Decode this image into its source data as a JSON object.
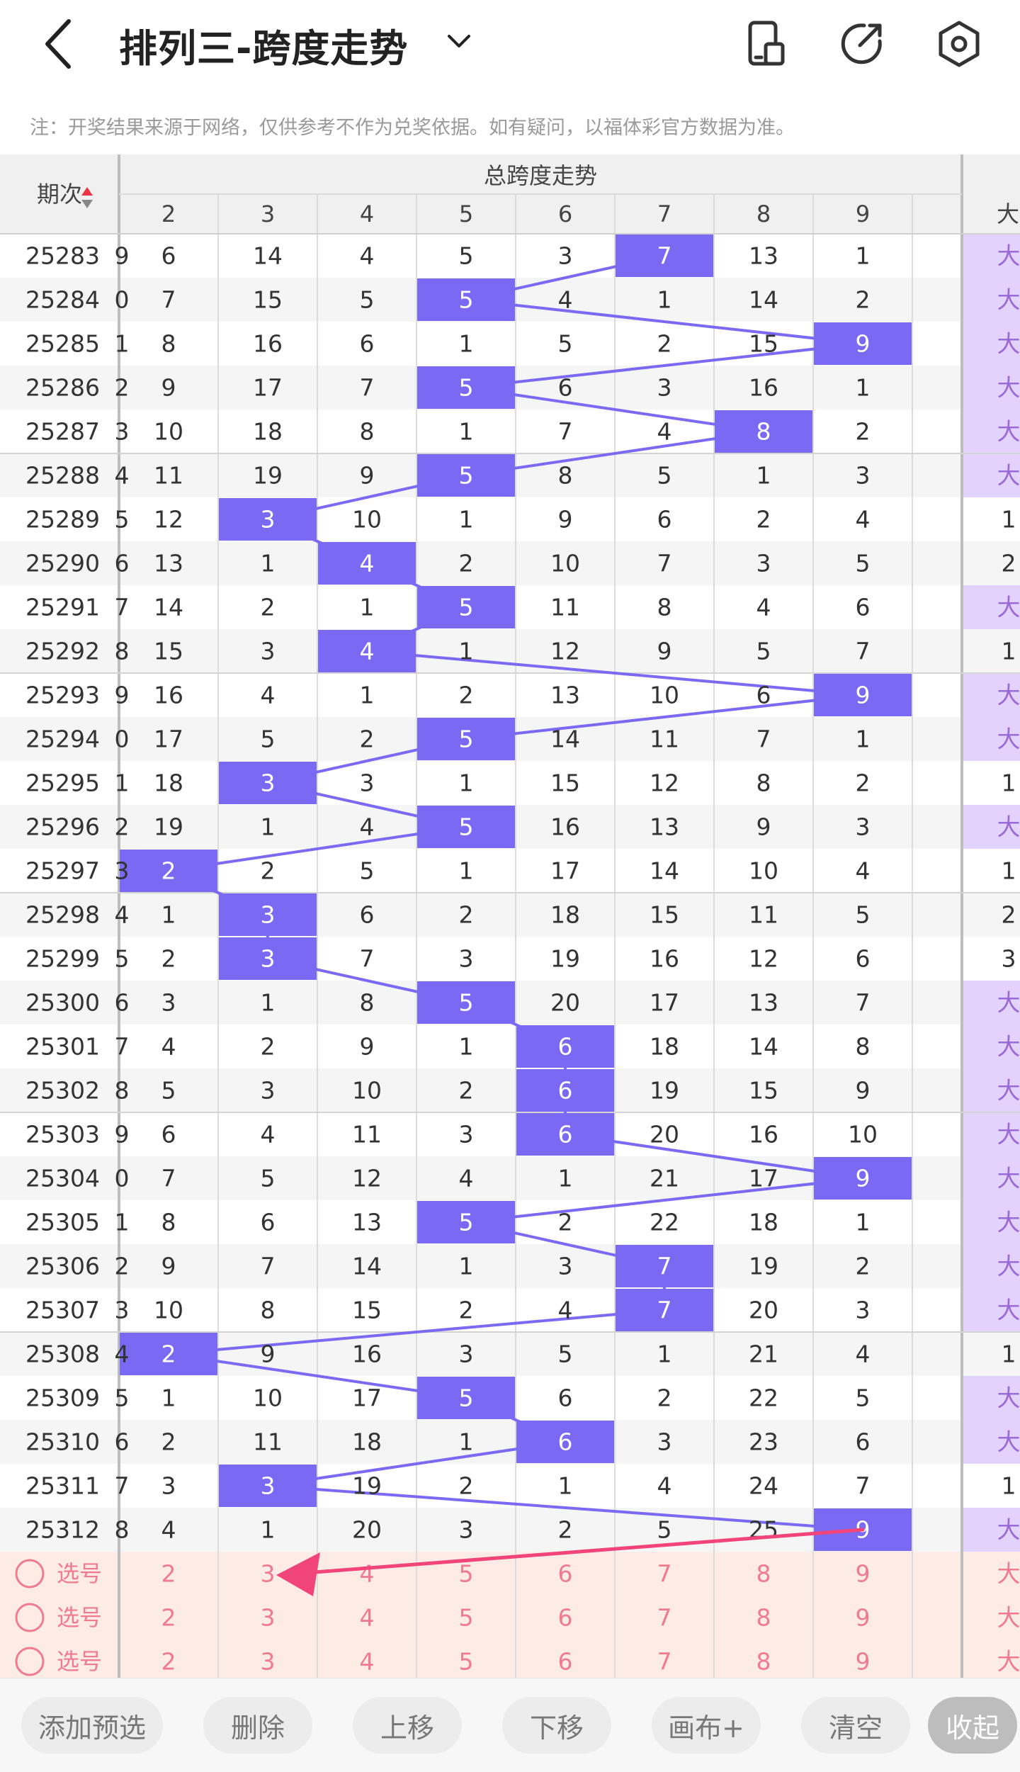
{
  "header": {
    "title": "排列三-跨度走势",
    "icons": [
      "back-arrow-icon",
      "chevron-down-icon",
      "phone-layout-icon",
      "share-icon",
      "settings-icon"
    ]
  },
  "notice": "注：开奖结果来源于网络，仅供参考不作为兑奖依据。如有疑问，以福体彩官方数据为准。",
  "table": {
    "period_header": "期次",
    "group_header": "总跨度走势",
    "columns": [
      "2",
      "3",
      "4",
      "5",
      "6",
      "7",
      "8",
      "9"
    ],
    "right_header": "大",
    "left_partial_header": "",
    "rows": [
      {
        "period": "25283",
        "left": "9",
        "vals": [
          "6",
          "14",
          "4",
          "5",
          "3",
          "7",
          "13",
          "1"
        ],
        "hit": "7",
        "right": "大"
      },
      {
        "period": "25284",
        "left": "0",
        "vals": [
          "7",
          "15",
          "5",
          "5",
          "4",
          "1",
          "14",
          "2"
        ],
        "hit": "5",
        "right": "大"
      },
      {
        "period": "25285",
        "left": "1",
        "vals": [
          "8",
          "16",
          "6",
          "1",
          "5",
          "2",
          "15",
          "9"
        ],
        "hit": "9",
        "right": "大"
      },
      {
        "period": "25286",
        "left": "2",
        "vals": [
          "9",
          "17",
          "7",
          "5",
          "6",
          "3",
          "16",
          "1"
        ],
        "hit": "5",
        "right": "大"
      },
      {
        "period": "25287",
        "left": "3",
        "vals": [
          "10",
          "18",
          "8",
          "1",
          "7",
          "4",
          "8",
          "2"
        ],
        "hit": "8",
        "right": "大"
      },
      {
        "period": "25288",
        "left": "4",
        "vals": [
          "11",
          "19",
          "9",
          "5",
          "8",
          "5",
          "1",
          "3"
        ],
        "hit": "5",
        "right": "大"
      },
      {
        "period": "25289",
        "left": "5",
        "vals": [
          "12",
          "3",
          "10",
          "1",
          "9",
          "6",
          "2",
          "4"
        ],
        "hit": "3",
        "right": "1"
      },
      {
        "period": "25290",
        "left": "6",
        "vals": [
          "13",
          "1",
          "4",
          "2",
          "10",
          "7",
          "3",
          "5"
        ],
        "hit": "4",
        "right": "2"
      },
      {
        "period": "25291",
        "left": "7",
        "vals": [
          "14",
          "2",
          "1",
          "5",
          "11",
          "8",
          "4",
          "6"
        ],
        "hit": "5",
        "right": "大"
      },
      {
        "period": "25292",
        "left": "8",
        "vals": [
          "15",
          "3",
          "4",
          "1",
          "12",
          "9",
          "5",
          "7"
        ],
        "hit": "4",
        "right": "1"
      },
      {
        "period": "25293",
        "left": "9",
        "vals": [
          "16",
          "4",
          "1",
          "2",
          "13",
          "10",
          "6",
          "9"
        ],
        "hit": "9",
        "right": "大"
      },
      {
        "period": "25294",
        "left": "0",
        "vals": [
          "17",
          "5",
          "2",
          "5",
          "14",
          "11",
          "7",
          "1"
        ],
        "hit": "5",
        "right": "大"
      },
      {
        "period": "25295",
        "left": "1",
        "vals": [
          "18",
          "3",
          "3",
          "1",
          "15",
          "12",
          "8",
          "2"
        ],
        "hit": "3",
        "right": "1"
      },
      {
        "period": "25296",
        "left": "2",
        "vals": [
          "19",
          "1",
          "4",
          "5",
          "16",
          "13",
          "9",
          "3"
        ],
        "hit": "5",
        "right": "大"
      },
      {
        "period": "25297",
        "left": "3",
        "vals": [
          "2",
          "2",
          "5",
          "1",
          "17",
          "14",
          "10",
          "4"
        ],
        "hit": "2",
        "right": "1"
      },
      {
        "period": "25298",
        "left": "4",
        "vals": [
          "1",
          "3",
          "6",
          "2",
          "18",
          "15",
          "11",
          "5"
        ],
        "hit": "3",
        "right": "2"
      },
      {
        "period": "25299",
        "left": "5",
        "vals": [
          "2",
          "3",
          "7",
          "3",
          "19",
          "16",
          "12",
          "6"
        ],
        "hit": "3",
        "right": "3"
      },
      {
        "period": "25300",
        "left": "6",
        "vals": [
          "3",
          "1",
          "8",
          "5",
          "20",
          "17",
          "13",
          "7"
        ],
        "hit": "5",
        "right": "大"
      },
      {
        "period": "25301",
        "left": "7",
        "vals": [
          "4",
          "2",
          "9",
          "1",
          "6",
          "18",
          "14",
          "8"
        ],
        "hit": "6",
        "right": "大"
      },
      {
        "period": "25302",
        "left": "8",
        "vals": [
          "5",
          "3",
          "10",
          "2",
          "6",
          "19",
          "15",
          "9"
        ],
        "hit": "6",
        "right": "大"
      },
      {
        "period": "25303",
        "left": "9",
        "vals": [
          "6",
          "4",
          "11",
          "3",
          "6",
          "20",
          "16",
          "10"
        ],
        "hit": "6",
        "right": "大"
      },
      {
        "period": "25304",
        "left": "0",
        "vals": [
          "7",
          "5",
          "12",
          "4",
          "1",
          "21",
          "17",
          "9"
        ],
        "hit": "9",
        "right": "大"
      },
      {
        "period": "25305",
        "left": "1",
        "vals": [
          "8",
          "6",
          "13",
          "5",
          "2",
          "22",
          "18",
          "1"
        ],
        "hit": "5",
        "right": "大"
      },
      {
        "period": "25306",
        "left": "2",
        "vals": [
          "9",
          "7",
          "14",
          "1",
          "3",
          "7",
          "19",
          "2"
        ],
        "hit": "7",
        "right": "大"
      },
      {
        "period": "25307",
        "left": "3",
        "vals": [
          "10",
          "8",
          "15",
          "2",
          "4",
          "7",
          "20",
          "3"
        ],
        "hit": "7",
        "right": "大"
      },
      {
        "period": "25308",
        "left": "4",
        "vals": [
          "2",
          "9",
          "16",
          "3",
          "5",
          "1",
          "21",
          "4"
        ],
        "hit": "2",
        "right": "1"
      },
      {
        "period": "25309",
        "left": "5",
        "vals": [
          "1",
          "10",
          "17",
          "5",
          "6",
          "2",
          "22",
          "5"
        ],
        "hit": "5",
        "right": "大"
      },
      {
        "period": "25310",
        "left": "6",
        "vals": [
          "2",
          "11",
          "18",
          "1",
          "6",
          "3",
          "23",
          "6"
        ],
        "hit": "6",
        "right": "大"
      },
      {
        "period": "25311",
        "left": "7",
        "vals": [
          "3",
          "3",
          "19",
          "2",
          "1",
          "4",
          "24",
          "7"
        ],
        "hit": "3",
        "right": "1"
      },
      {
        "period": "25312",
        "left": "8",
        "vals": [
          "4",
          "1",
          "20",
          "3",
          "2",
          "5",
          "25",
          "9"
        ],
        "hit": "9",
        "right": "大"
      }
    ],
    "selection_rows": [
      {
        "label": "选号",
        "vals": [
          "2",
          "3",
          "4",
          "5",
          "6",
          "7",
          "8",
          "9"
        ],
        "right": "大"
      },
      {
        "label": "选号",
        "vals": [
          "2",
          "3",
          "4",
          "5",
          "6",
          "7",
          "8",
          "9"
        ],
        "right": "大"
      },
      {
        "label": "选号",
        "vals": [
          "2",
          "3",
          "4",
          "5",
          "6",
          "7",
          "8",
          "9"
        ],
        "right": "大"
      }
    ]
  },
  "colors": {
    "hit": "#7a6af3",
    "line": "#7a6af3",
    "arrow": "#f0447a",
    "right_hit": "#e3d2fb",
    "selection_bg": "#fdece6",
    "selection_text": "#f07b90"
  },
  "toolbar": {
    "buttons": [
      "添加预选",
      "删除",
      "上移",
      "下移",
      "画布+",
      "清空",
      "收起"
    ]
  }
}
